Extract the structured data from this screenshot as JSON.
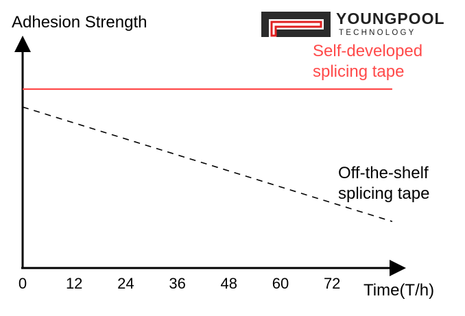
{
  "brand": {
    "name": "YOUNGPOOL",
    "tagline": "TECHNOLOGY",
    "logo_icon": "youngpool-logo-icon",
    "logo_colors": {
      "dark": "#2b2b2b",
      "accent": "#e02020"
    }
  },
  "chart_data": {
    "type": "line",
    "ylabel": "Adhesion Strength",
    "xlabel": "Time(T/h)",
    "x_ticks": [
      0,
      12,
      24,
      36,
      48,
      60,
      72
    ],
    "xlim": [
      0,
      90
    ],
    "ylim": [
      0,
      100
    ],
    "grid": false,
    "y_tick_labels_shown": false,
    "series": [
      {
        "name": "Self-developed splicing tape",
        "label_lines": [
          "Self-developed",
          "splicing tape"
        ],
        "style": "solid",
        "color": "#ff4a4a",
        "x": [
          0,
          86
        ],
        "y": [
          100,
          100
        ]
      },
      {
        "name": "Off-the-shelf splicing tape",
        "label_lines": [
          "Off-the-shelf",
          "splicing tape"
        ],
        "style": "dashed",
        "color": "#000000",
        "x": [
          0,
          86
        ],
        "y": [
          90,
          26
        ]
      }
    ]
  }
}
